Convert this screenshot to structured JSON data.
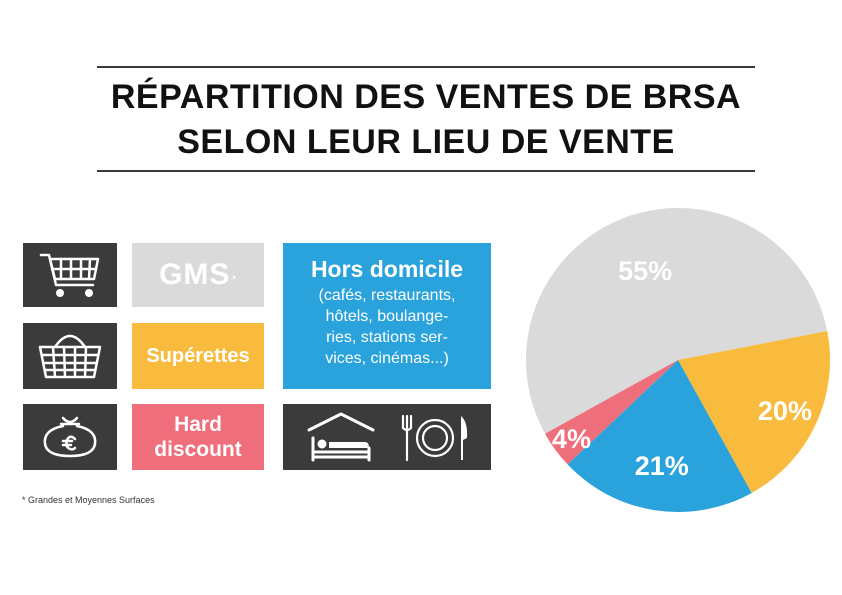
{
  "title": {
    "line1": "RÉPARTITION DES VENTES DE BRSA",
    "line2": "SELON LEUR LIEU DE VENTE"
  },
  "legend": {
    "gms": {
      "label": "GMS",
      "marker": "*",
      "color": "#dadada",
      "icon": "shopping-cart-icon"
    },
    "superettes": {
      "label": "Supérettes",
      "color": "#f8bb3d",
      "icon": "shopping-basket-icon"
    },
    "hard_discount": {
      "line1": "Hard",
      "line2": "discount",
      "color": "#ee6e7c",
      "icon": "money-bag-euro-icon"
    },
    "hors_domicile": {
      "title": "Hors domicile",
      "desc_lines": [
        "(cafés, restaurants,",
        "hôtels, boulange-",
        "ries, stations ser-",
        "vices, cinémas...)"
      ],
      "color": "#2aa3dc",
      "icons": [
        "hotel-bed-icon",
        "fork-plate-knife-icon"
      ]
    }
  },
  "footnote": "* Grandes et Moyennes Surfaces",
  "chart_data": {
    "type": "pie",
    "slices": [
      {
        "label": "55%",
        "value": 55,
        "color": "#dadada"
      },
      {
        "label": "20%",
        "value": 20,
        "color": "#f8bb3d"
      },
      {
        "label": "21%",
        "value": 21,
        "color": "#2aa3dc"
      },
      {
        "label": "4%",
        "value": 4,
        "color": "#ee6e7c"
      }
    ],
    "title": "RÉPARTITION DES VENTES DE BRSA SELON LEUR LIEU DE VENTE"
  }
}
